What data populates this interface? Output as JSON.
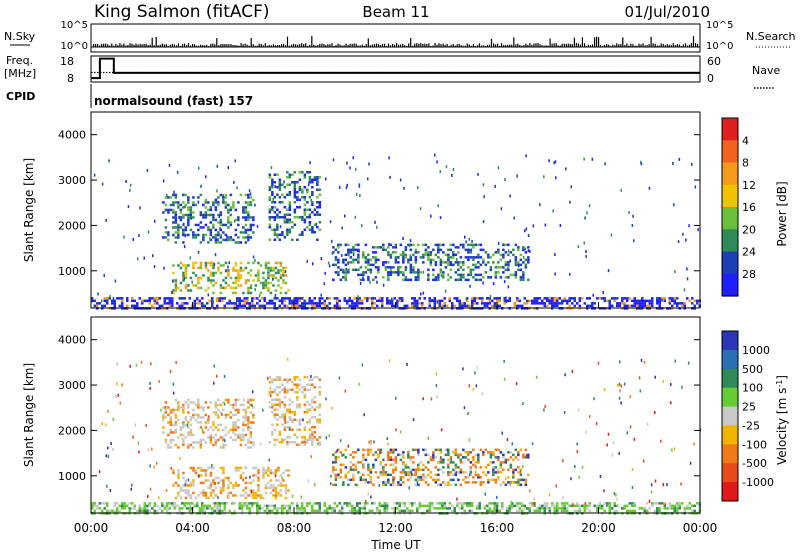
{
  "header": {
    "station": "King Salmon (fitACF)",
    "beam": "Beam 11",
    "date": "01/Jul/2010"
  },
  "labels": {
    "nsky": "N.Sky",
    "freq_line1": "Freq.",
    "freq_line2": "[MHz]",
    "cpid": "CPID",
    "nsearch": "N.Search",
    "nave": "Nave",
    "cpid_value": "normalsound (fast) 157"
  },
  "chart_data": [
    {
      "type": "line",
      "title": "",
      "panel": "noise",
      "ylabel": "N.Sky",
      "y2label": "N.Search",
      "y_ticks": [
        "10^5",
        "10^0"
      ],
      "y2_ticks": [
        "10^5",
        "10^0"
      ],
      "xlim": [
        0,
        24
      ],
      "scale": "log"
    },
    {
      "type": "line",
      "title": "",
      "panel": "frequency",
      "ylabel": "Freq. [MHz]",
      "y2label": "Nave",
      "ylim": [
        8,
        18
      ],
      "y_ticks": [
        "18",
        "8"
      ],
      "y2lim": [
        0,
        60
      ],
      "y2_ticks": [
        "60",
        "0"
      ],
      "freq_steps": [
        {
          "x": 0.0,
          "y": 9.5
        },
        {
          "x": 0.35,
          "y": 17.0
        },
        {
          "x": 0.9,
          "y": 11.5
        },
        {
          "x": 24.0,
          "y": 11.5
        }
      ],
      "nave_level": 22
    },
    {
      "type": "heatmap",
      "title": "",
      "panel": "power",
      "ylabel": "Slant Range [km]",
      "ylim": [
        180,
        4500
      ],
      "xlim": [
        0,
        24
      ],
      "y_ticks": [
        "1000",
        "2000",
        "3000",
        "4000"
      ],
      "colorbar": {
        "label": "Power [dB]",
        "ticks": [
          "4",
          "8",
          "12",
          "16",
          "20",
          "24",
          "28"
        ],
        "colors": [
          "#2020ff",
          "#1c3fb4",
          "#2e8b57",
          "#6abf3a",
          "#f2c200",
          "#f59a1c",
          "#f0641f",
          "#e02020"
        ],
        "range": [
          0,
          32
        ]
      }
    },
    {
      "type": "heatmap",
      "title": "",
      "panel": "velocity",
      "ylabel": "Slant Range [km]",
      "xlabel": "Time UT",
      "ylim": [
        180,
        4500
      ],
      "xlim": [
        0,
        24
      ],
      "x_ticks": [
        "00:00",
        "04:00",
        "08:00",
        "12:00",
        "16:00",
        "20:00",
        "00:00"
      ],
      "y_ticks": [
        "1000",
        "2000",
        "3000",
        "4000"
      ],
      "colorbar": {
        "label": "Velocity [m s^-1]",
        "ticks": [
          "1000",
          "500",
          "100",
          "25",
          "-25",
          "-100",
          "-500",
          "-1000"
        ],
        "colors": [
          "#2a38b8",
          "#2a6fb2",
          "#2e8b57",
          "#66cc33",
          "#c8c8c8",
          "#f2b300",
          "#f07a1a",
          "#e84a1a",
          "#e01818"
        ]
      },
      "echo_regions": [
        {
          "x0": 2.8,
          "x1": 6.4,
          "y0": 1600,
          "y1": 2700,
          "v": "low"
        },
        {
          "x0": 7.0,
          "x1": 9.0,
          "y0": 1700,
          "y1": 3200,
          "v": "low"
        },
        {
          "x0": 3.2,
          "x1": 7.8,
          "y0": 500,
          "y1": 1200,
          "v": "toward"
        },
        {
          "x0": 9.5,
          "x1": 17.2,
          "y0": 800,
          "y1": 1600,
          "v": "mixed"
        },
        {
          "x0": 0.0,
          "x1": 24.0,
          "y0": 180,
          "y1": 420,
          "v": "ground"
        }
      ]
    }
  ]
}
